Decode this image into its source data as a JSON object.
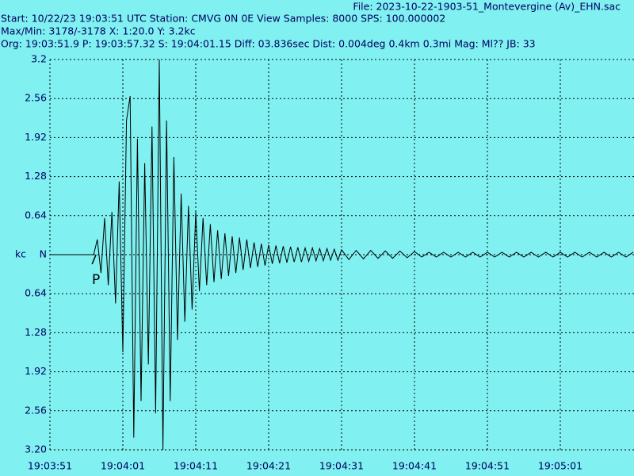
{
  "chart_data": {
    "type": "line",
    "title": "File: 2023-10-22-1903-51_Montevergine (Av)_EHN.sac",
    "annotations": [
      "Start: 10/22/23 19:03:51 UTC Station: CMVG 0N 0E View Samples: 8000  SPS: 100.000002",
      "Max/Min: 3178/-3178 X: 1:20.0 Y: 3.2kc",
      "Org: 19:03:51.9 P: 19:03:57.32 S: 19:04:01.15 Diff: 03.836sec Dist: 0.004deg 0.4km 0.3mi  Mag: Ml?? JB: 33"
    ],
    "y_label": "kc",
    "pick": {
      "text": "P",
      "x": 6.32
    },
    "color": "#000000",
    "grid": true,
    "xlim": [
      0,
      80
    ],
    "xticks": [
      {
        "value": 0,
        "label": "19:03:51"
      },
      {
        "value": 10,
        "label": "19:04:01"
      },
      {
        "value": 20,
        "label": "19:04:11"
      },
      {
        "value": 30,
        "label": "19:04:21"
      },
      {
        "value": 40,
        "label": "19:04:31"
      },
      {
        "value": 50,
        "label": "19:04:41"
      },
      {
        "value": 60,
        "label": "19:04:51"
      },
      {
        "value": 70,
        "label": "19:05:01"
      }
    ],
    "ylim": [
      -3.2,
      3.2
    ],
    "yticks": [
      3.2,
      2.56,
      1.92,
      1.28,
      0.64,
      {
        "value": 0,
        "label": "N"
      },
      {
        "value": -0.64,
        "label": "0.64"
      },
      {
        "value": -1.28,
        "label": "1.28"
      },
      {
        "value": -1.92,
        "label": "1.92"
      },
      {
        "value": -2.56,
        "label": "2.56"
      },
      {
        "value": -3.2,
        "label": "3.20"
      }
    ],
    "x": [
      0,
      0.5,
      1,
      1.5,
      2,
      2.5,
      3,
      3.5,
      4,
      4.5,
      5,
      5.5,
      6,
      6.5,
      7,
      7.5,
      8,
      8.5,
      9,
      9.5,
      10,
      10.5,
      11,
      11.5,
      12,
      12.5,
      13,
      13.5,
      14,
      14.5,
      15,
      15.5,
      16,
      16.5,
      17,
      17.5,
      18,
      18.5,
      19,
      19.5,
      20,
      20.5,
      21,
      21.5,
      22,
      22.5,
      23,
      23.5,
      24,
      24.5,
      25,
      25.5,
      26,
      26.5,
      27,
      27.5,
      28,
      28.5,
      29,
      29.5,
      30,
      30.5,
      31,
      31.5,
      32,
      32.5,
      33,
      33.5,
      34,
      34.5,
      35,
      35.5,
      36,
      36.5,
      37,
      37.5,
      38,
      38.5,
      39,
      39.5,
      40,
      41,
      42,
      43,
      44,
      45,
      46,
      47,
      48,
      49,
      50,
      51,
      52,
      53,
      54,
      55,
      56,
      57,
      58,
      59,
      60,
      61,
      62,
      63,
      64,
      65,
      66,
      67,
      68,
      69,
      70,
      71,
      72,
      73,
      74,
      75,
      76,
      77,
      78,
      79,
      80
    ],
    "values": [
      0,
      0,
      0,
      0,
      0,
      0,
      0,
      0,
      0,
      0,
      0,
      0,
      0,
      0.25,
      -0.3,
      0.6,
      -0.5,
      0.7,
      -0.8,
      1.2,
      -1.6,
      2.2,
      2.6,
      -3.0,
      1.9,
      -2.4,
      1.5,
      -1.8,
      2.1,
      -2.6,
      3.2,
      -3.2,
      2.2,
      -2.4,
      1.6,
      -1.4,
      1.0,
      -1.1,
      0.8,
      -0.9,
      0.7,
      -0.6,
      0.6,
      -0.5,
      0.5,
      -0.45,
      0.4,
      -0.4,
      0.35,
      -0.35,
      0.3,
      -0.3,
      0.28,
      -0.25,
      0.25,
      -0.22,
      0.2,
      -0.2,
      0.18,
      -0.18,
      0.16,
      -0.15,
      0.15,
      -0.14,
      0.14,
      -0.13,
      0.13,
      -0.12,
      0.12,
      -0.12,
      0.11,
      -0.11,
      0.11,
      -0.1,
      0.1,
      -0.1,
      0.1,
      -0.09,
      0.09,
      -0.09,
      0.08,
      -0.08,
      0.07,
      -0.07,
      0.07,
      -0.06,
      0.06,
      -0.06,
      0.06,
      -0.05,
      0.05,
      -0.04,
      0.04,
      -0.04,
      0.04,
      -0.04,
      0.04,
      -0.04,
      0.04,
      -0.04,
      0.04,
      -0.04,
      0.04,
      -0.04,
      0.04,
      -0.04,
      0.04,
      -0.04,
      0.04,
      -0.04,
      0.04,
      -0.04,
      0.04,
      -0.04,
      0.04,
      -0.04,
      0.04,
      -0.04,
      0.04,
      -0.04,
      0.04
    ]
  }
}
